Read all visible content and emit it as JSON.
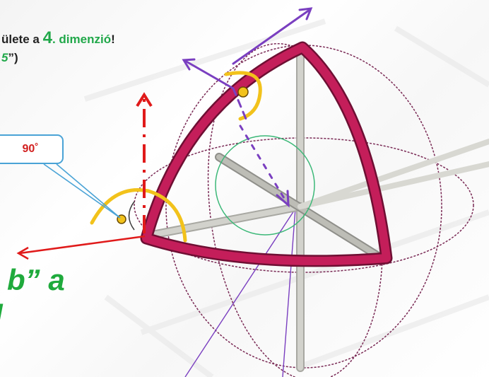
{
  "caption": {
    "line1_prefix": "ülete a ",
    "line1_number": "4",
    "line1_suffix_pre": ". ",
    "line1_word": "dimenzió",
    "line1_end": "!",
    "line2_fragment": "5",
    "line2_end": "”)"
  },
  "callout": {
    "text": "90˚"
  },
  "big_text": {
    "line1": "b” a",
    "line2": "l"
  },
  "colors": {
    "sphere_edge": "#c41e5a",
    "wire": "#7a2a55",
    "axis": "#c8c8c2",
    "arrow_red": "#e01a1a",
    "arrow_purple": "#7a3fc0",
    "angle_arc": "#f2c21b",
    "inner_circle": "#3cb878",
    "callout_border": "#4aa3d6",
    "text_green": "#1faa3c"
  }
}
